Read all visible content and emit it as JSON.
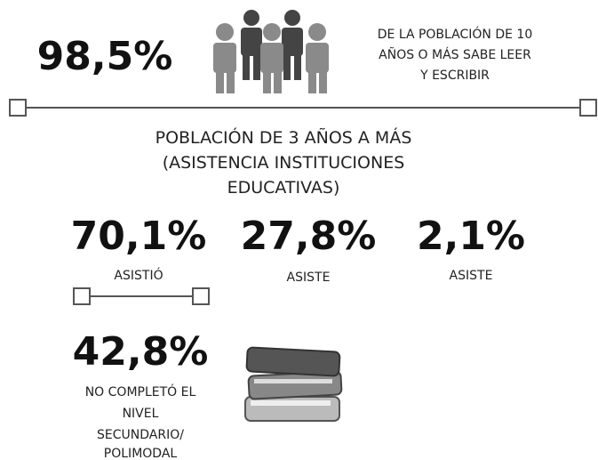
{
  "header": {
    "value": "98,5%",
    "text": [
      "DE LA POBLACIÓN DE 10",
      "AÑOS O MÁS SABE LEER",
      "Y ESCRIBIR"
    ]
  },
  "section": {
    "title": [
      "POBLACIÓN DE 3 AÑOS A MÁS",
      "(ASISTENCIA INSTITUCIONES",
      "EDUCATIVAS)"
    ],
    "stats": [
      {
        "value": "70,1%",
        "label": "ASISTIÓ"
      },
      {
        "value": "27,8%",
        "label": "ASISTE"
      },
      {
        "value": "2,1%",
        "label": "ASISTE"
      }
    ]
  },
  "detail": {
    "value": "42,8%",
    "label": [
      "NO COMPLETÓ EL",
      "NIVEL",
      "SECUNDARIO/",
      "POLIMODAL"
    ]
  }
}
